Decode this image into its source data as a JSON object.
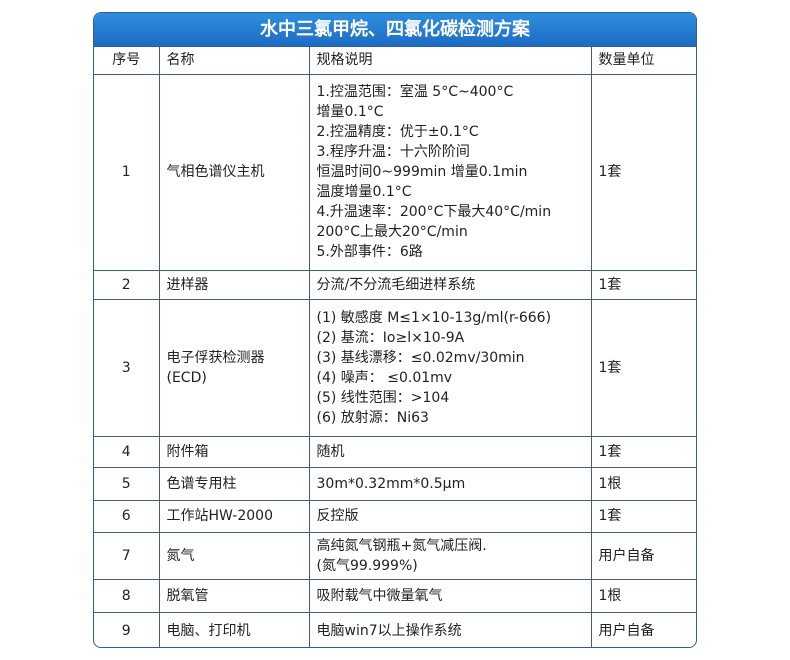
{
  "title": "水中三氯甲烷、四氯化碳检测方案",
  "headers": [
    "序号",
    "名称",
    "规格说明",
    "数量单位"
  ],
  "rows": [
    {
      "no": "1",
      "name": [
        "气相色谱仪主机"
      ],
      "spec": [
        "1.控温范围：室温 5°C~400°C",
        "增量0.1°C",
        "2.控温精度：优于±0.1°C",
        "3.程序升温：十六阶阶间",
        "恒温时间0~999min 增量0.1min",
        "温度增量0.1°C",
        "4.升温速率：200°C下最大40°C/min",
        "200°C上最大20°C/min",
        "5.外部事件：6路"
      ],
      "qty": "1套"
    },
    {
      "no": "2",
      "name": [
        "进样器"
      ],
      "spec": [
        "分流/不分流毛细进样系统"
      ],
      "qty": "1套"
    },
    {
      "no": "3",
      "name": [
        "电子俘获检测器",
        "(ECD)"
      ],
      "spec": [
        "(1) 敏感度 M≤1×10-13g/ml(r-666)",
        "(2) 基流：Io≥l×10-9A",
        "(3) 基线漂移：≤0.02mv/30min",
        "(4) 噪声： ≤0.01mv",
        "(5) 线性范围：>104",
        "(6) 放射源：Ni63"
      ],
      "qty": "1套"
    },
    {
      "no": "4",
      "name": [
        "附件箱"
      ],
      "spec": [
        "随机"
      ],
      "qty": "1套"
    },
    {
      "no": "5",
      "name": [
        "色谱专用柱"
      ],
      "spec": [
        "30m*0.32mm*0.5μm"
      ],
      "qty": "1根"
    },
    {
      "no": "6",
      "name": [
        "工作站HW-2000"
      ],
      "spec": [
        "反控版"
      ],
      "qty": "1套"
    },
    {
      "no": "7",
      "name": [
        "氮气"
      ],
      "spec": [
        "高纯氮气钢瓶+氮气减压阀.",
        "(氮气99.999%)"
      ],
      "qty": "用户自备"
    },
    {
      "no": "8",
      "name": [
        "脱氧管"
      ],
      "spec": [
        "吸附载气中微量氧气"
      ],
      "qty": "1根"
    },
    {
      "no": "9",
      "name": [
        "电脑、打印机"
      ],
      "spec": [
        "电脑win7以上操作系统"
      ],
      "qty": "用户自备"
    }
  ]
}
